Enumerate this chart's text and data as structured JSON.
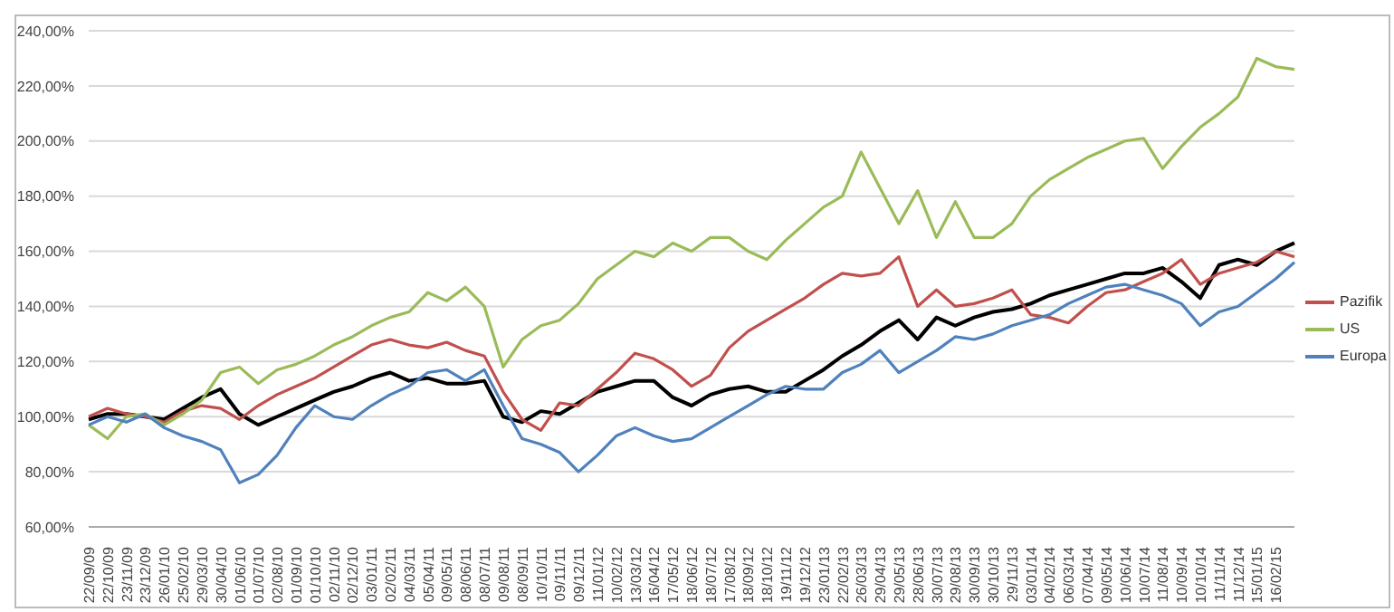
{
  "chart_data": {
    "type": "line",
    "categories": [
      "22/09/09",
      "22/10/09",
      "23/11/09",
      "23/12/09",
      "26/01/10",
      "25/02/10",
      "29/03/10",
      "30/04/10",
      "01/06/10",
      "01/07/10",
      "02/08/10",
      "01/09/10",
      "01/10/10",
      "02/11/10",
      "02/12/10",
      "03/01/11",
      "02/02/11",
      "04/03/11",
      "05/04/11",
      "09/05/11",
      "08/06/11",
      "08/07/11",
      "09/08/11",
      "08/09/11",
      "10/10/11",
      "09/11/11",
      "09/12/11",
      "11/01/12",
      "10/02/12",
      "13/03/12",
      "16/04/12",
      "17/05/12",
      "18/06/12",
      "18/07/12",
      "17/08/12",
      "18/09/12",
      "18/10/12",
      "19/11/12",
      "19/12/12",
      "23/01/13",
      "22/02/13",
      "26/03/13",
      "29/04/13",
      "29/05/13",
      "28/06/13",
      "30/07/13",
      "29/08/13",
      "30/09/13",
      "30/10/13",
      "29/11/13",
      "03/01/14",
      "04/02/14",
      "06/03/14",
      "07/04/14",
      "09/05/14",
      "10/06/14",
      "10/07/14",
      "11/08/14",
      "10/09/14",
      "10/10/14",
      "11/11/14",
      "11/12/14",
      "15/01/15",
      "16/02/15",
      null
    ],
    "series": [
      {
        "color": "#000000",
        "values": [
          99,
          101,
          101,
          100,
          99,
          103,
          107,
          110,
          101,
          97,
          100,
          103,
          106,
          109,
          111,
          114,
          116,
          113,
          114,
          112,
          112,
          113,
          100,
          98,
          102,
          101,
          105,
          109,
          111,
          113,
          113,
          107,
          104,
          108,
          110,
          111,
          109,
          109,
          113,
          117,
          122,
          126,
          131,
          135,
          128,
          136,
          133,
          136,
          138,
          139,
          141,
          144,
          146,
          148,
          150,
          152,
          152,
          154,
          149,
          143,
          155,
          157,
          155,
          160,
          163
        ]
      },
      {
        "name": "Pazifik",
        "color": "#c0504d",
        "values": [
          100,
          103,
          101,
          100,
          98,
          102,
          104,
          103,
          99,
          104,
          108,
          111,
          114,
          118,
          122,
          126,
          128,
          126,
          125,
          127,
          124,
          122,
          109,
          99,
          95,
          105,
          104,
          110,
          116,
          123,
          121,
          117,
          111,
          115,
          125,
          131,
          135,
          139,
          143,
          148,
          152,
          151,
          152,
          158,
          140,
          146,
          140,
          141,
          143,
          146,
          137,
          136,
          134,
          140,
          145,
          146,
          149,
          152,
          157,
          148,
          152,
          154,
          156,
          160,
          158
        ]
      },
      {
        "name": "US",
        "color": "#9bbb59",
        "values": [
          97,
          92,
          100,
          101,
          97,
          101,
          106,
          116,
          118,
          112,
          117,
          119,
          122,
          126,
          129,
          133,
          136,
          138,
          145,
          142,
          147,
          140,
          118,
          128,
          133,
          135,
          141,
          150,
          155,
          160,
          158,
          163,
          160,
          165,
          165,
          160,
          157,
          164,
          170,
          176,
          180,
          196,
          183,
          170,
          182,
          165,
          178,
          165,
          165,
          170,
          180,
          186,
          190,
          194,
          197,
          200,
          201,
          190,
          198,
          205,
          210,
          216,
          230,
          227,
          226
        ]
      },
      {
        "name": "Europa",
        "color": "#4f81bd",
        "values": [
          97,
          100,
          98,
          101,
          96,
          93,
          91,
          88,
          76,
          79,
          86,
          96,
          104,
          100,
          99,
          104,
          108,
          111,
          116,
          117,
          113,
          117,
          104,
          92,
          90,
          87,
          80,
          86,
          93,
          96,
          93,
          91,
          92,
          96,
          100,
          104,
          108,
          111,
          110,
          110,
          116,
          119,
          124,
          116,
          120,
          124,
          129,
          128,
          130,
          133,
          135,
          137,
          141,
          144,
          147,
          148,
          146,
          144,
          141,
          133,
          138,
          140,
          145,
          150,
          156
        ]
      }
    ],
    "ylim": [
      60,
      240
    ],
    "yticks": [
      {
        "value": 60,
        "label": "60,00%"
      },
      {
        "value": 80,
        "label": "80,00%"
      },
      {
        "value": 100,
        "label": "100,00%"
      },
      {
        "value": 120,
        "label": "120,00%"
      },
      {
        "value": 140,
        "label": "140,00%"
      },
      {
        "value": 160,
        "label": "160,00%"
      },
      {
        "value": 180,
        "label": "180,00%"
      },
      {
        "value": 200,
        "label": "200,00%"
      },
      {
        "value": 220,
        "label": "220,00%"
      },
      {
        "value": 240,
        "label": "240,00%"
      }
    ],
    "grid": "y",
    "legend": "right",
    "marker": "none",
    "line_style": "solid"
  }
}
